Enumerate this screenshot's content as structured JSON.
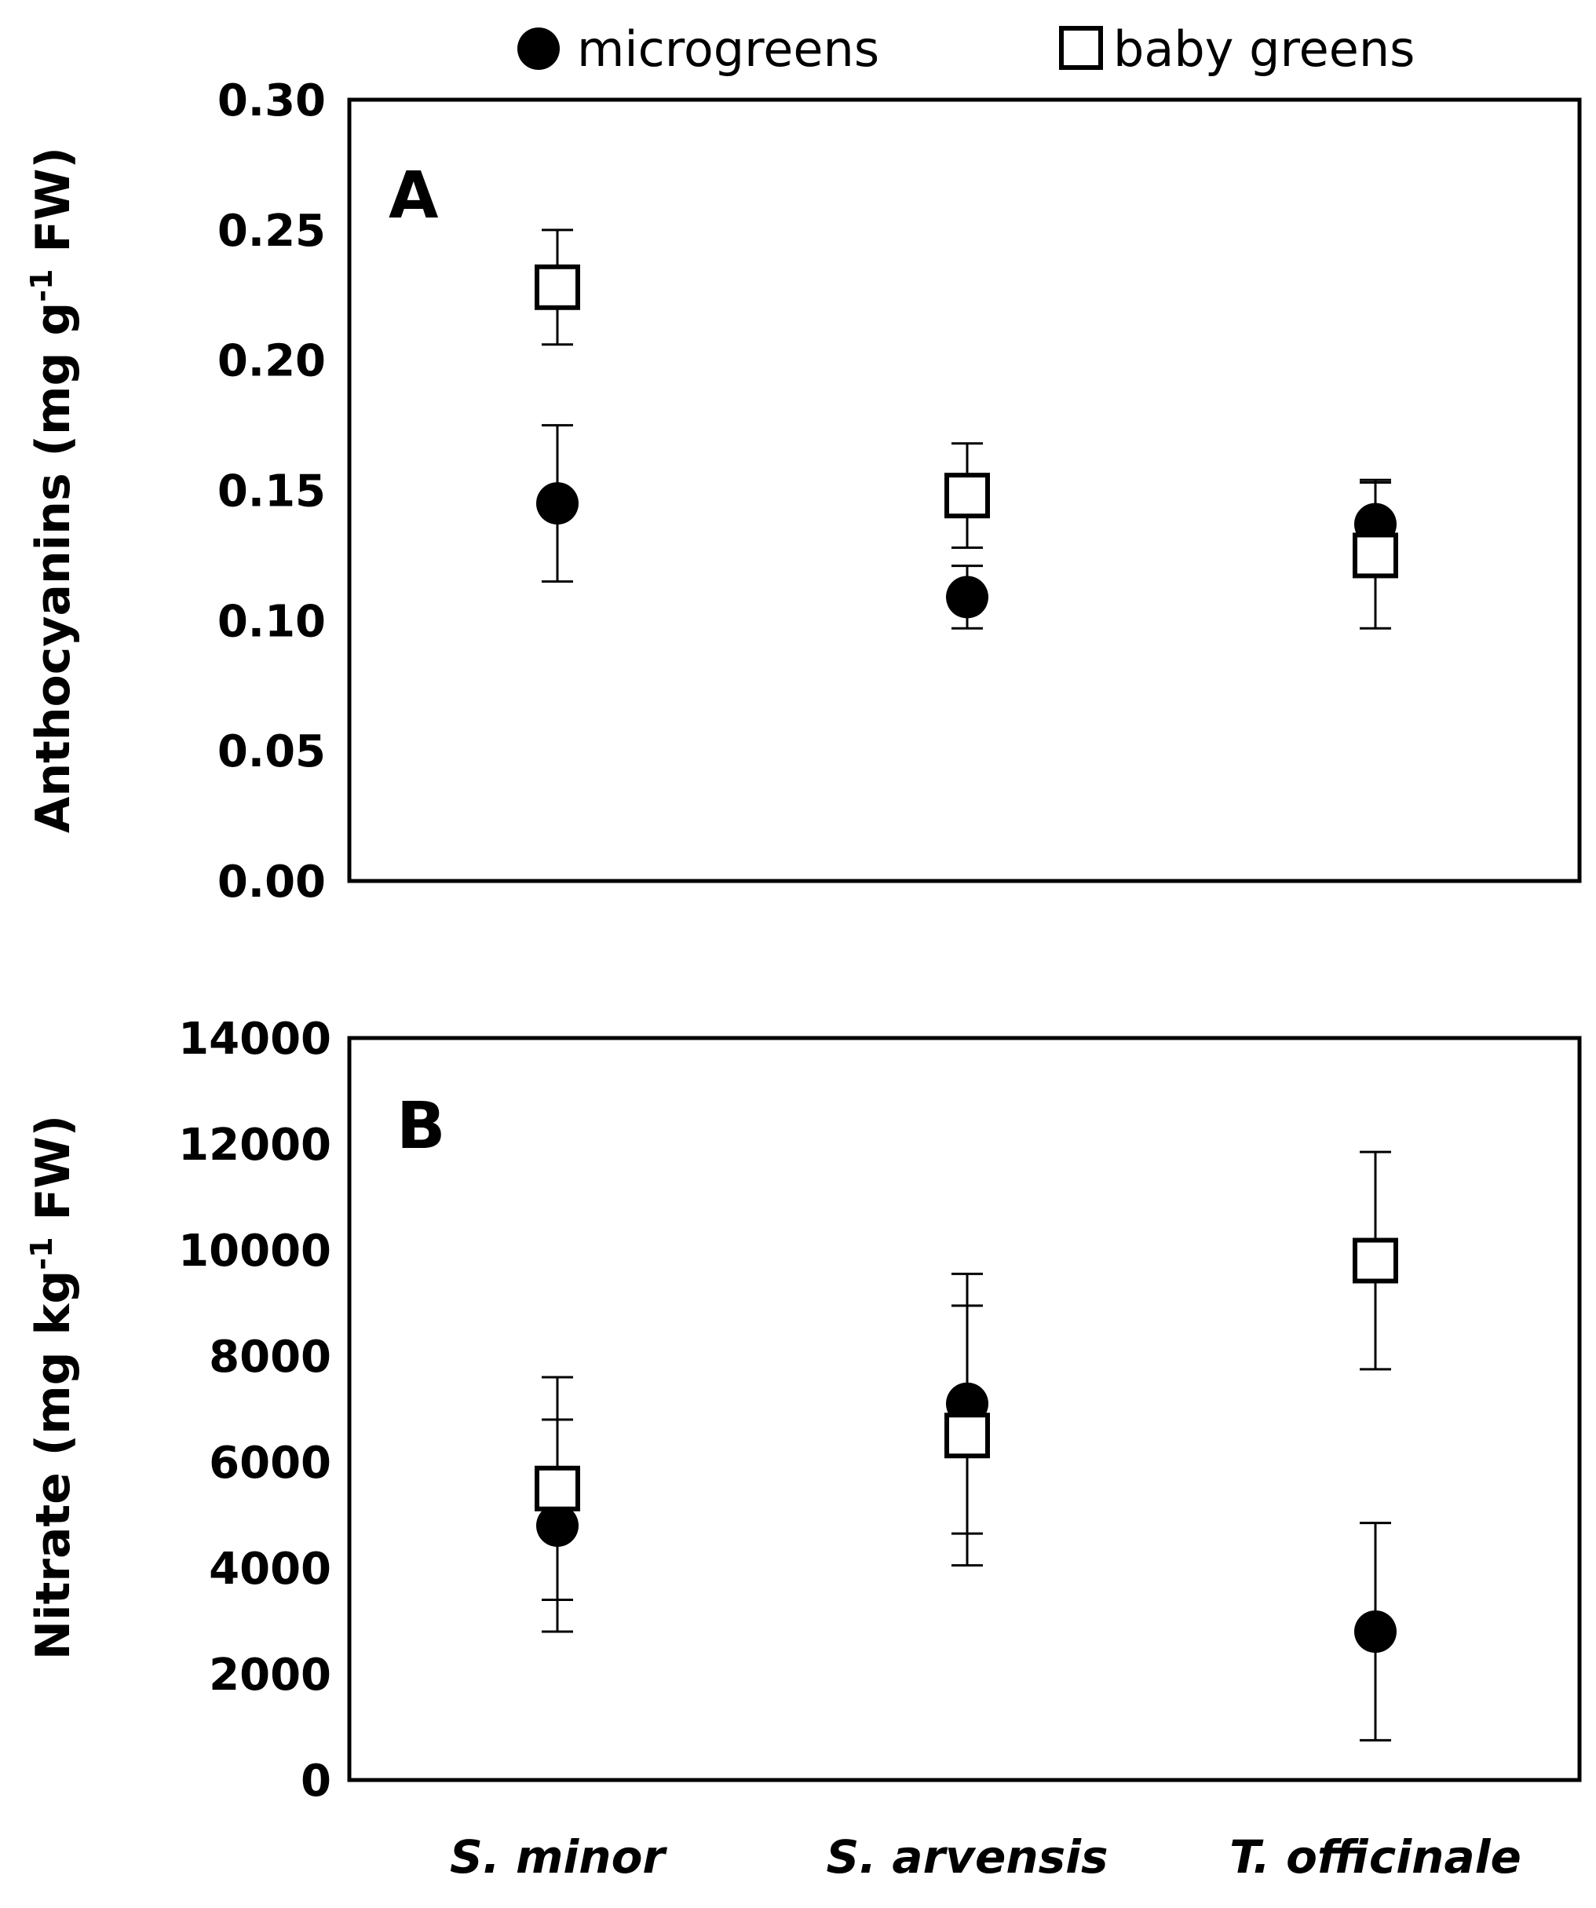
{
  "legend": {
    "items": [
      {
        "label": "microgreens",
        "marker": "filled-circle"
      },
      {
        "label": "baby greens",
        "marker": "open-square"
      }
    ],
    "placement": "top-center"
  },
  "colors": {
    "ink": "#000000",
    "background": "#ffffff"
  },
  "chart_data": [
    {
      "type": "scatter",
      "panel_label": "A",
      "categories": [
        "S. minor",
        "S. arvensis",
        "T. officinale"
      ],
      "ylabel_main": "Anthocyanins (mg g",
      "ylabel_sup": "-1",
      "ylabel_end": " FW)",
      "ylim": [
        0,
        0.3
      ],
      "yticks": [
        "0.00",
        "0.05",
        "0.10",
        "0.15",
        "0.20",
        "0.25",
        "0.30"
      ],
      "yticks_values": [
        0,
        0.05,
        0.1,
        0.15,
        0.2,
        0.25,
        0.3
      ],
      "grid": false,
      "series": [
        {
          "name": "microgreens",
          "marker": "filled-circle",
          "values": [
            0.145,
            0.109,
            0.137
          ],
          "errors": [
            0.03,
            0.012,
            0.017
          ]
        },
        {
          "name": "baby greens",
          "marker": "open-square",
          "values": [
            0.228,
            0.148,
            0.125
          ],
          "errors": [
            0.022,
            0.02,
            0.028
          ]
        }
      ]
    },
    {
      "type": "scatter",
      "panel_label": "B",
      "categories": [
        "S. minor",
        "S. arvensis",
        "T. officinale"
      ],
      "ylabel_main": "Nitrate (mg kg",
      "ylabel_sup": "-1",
      "ylabel_end": " FW)",
      "ylim": [
        0,
        14000
      ],
      "yticks": [
        "0",
        "2000",
        "4000",
        "6000",
        "8000",
        "10000",
        "12000",
        "14000"
      ],
      "yticks_values": [
        0,
        2000,
        4000,
        6000,
        8000,
        10000,
        12000,
        14000
      ],
      "grid": false,
      "series": [
        {
          "name": "microgreens",
          "marker": "filled-circle",
          "values": [
            4800,
            7100,
            2800
          ],
          "errors": [
            2000,
            2450,
            2050
          ]
        },
        {
          "name": "baby greens",
          "marker": "open-square",
          "values": [
            5500,
            6500,
            9800
          ],
          "errors": [
            2100,
            2450,
            2050
          ]
        }
      ]
    }
  ]
}
